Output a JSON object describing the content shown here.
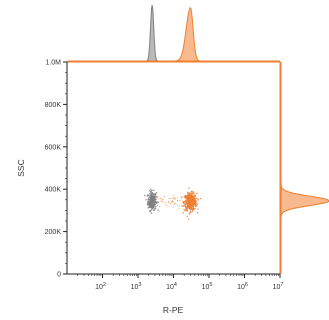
{
  "chart_data": {
    "type": "scatter",
    "title": "",
    "xlabel": "R-PE",
    "ylabel": "SSC",
    "x_scale": "log",
    "xlim": [
      10,
      10000000
    ],
    "ylim": [
      0,
      1000000
    ],
    "x_ticks": [
      {
        "value": 100,
        "base": "10",
        "exp": "2"
      },
      {
        "value": 1000,
        "base": "10",
        "exp": "3"
      },
      {
        "value": 10000,
        "base": "10",
        "exp": "4"
      },
      {
        "value": 100000,
        "base": "10",
        "exp": "5"
      },
      {
        "value": 1000000,
        "base": "10",
        "exp": "6"
      },
      {
        "value": 10000000,
        "base": "10",
        "exp": "7"
      }
    ],
    "y_ticks": [
      {
        "value": 0,
        "label": "0"
      },
      {
        "value": 200000,
        "label": "200K"
      },
      {
        "value": 400000,
        "label": "400K"
      },
      {
        "value": 600000,
        "label": "600K"
      },
      {
        "value": 800000,
        "label": "800K"
      },
      {
        "value": 1000000,
        "label": "1.0M"
      }
    ],
    "grid": false,
    "legend": "none",
    "colors": {
      "unstained": "#808080",
      "stained": "#f07f2f",
      "frame": "#f07f2f",
      "axis": "#222222"
    },
    "series": [
      {
        "color": "#808080",
        "x_center": 2500,
        "x_spread_log10": 0.06,
        "y_center": 345000,
        "y_spread": 22000
      },
      {
        "color": "#f07f2f",
        "x_center": 30000,
        "x_spread_log10": 0.09,
        "y_center": 340000,
        "y_spread": 20000
      }
    ],
    "top_histograms": [
      {
        "color": "#808080",
        "peak_x": 2500,
        "peak_height": 1.0
      },
      {
        "color": "#f07f2f",
        "peak_x": 30000,
        "peak_height": 0.95
      }
    ],
    "right_histogram": {
      "color": "#f07f2f",
      "peak_y": 345000,
      "peak_width": 1.0
    }
  }
}
